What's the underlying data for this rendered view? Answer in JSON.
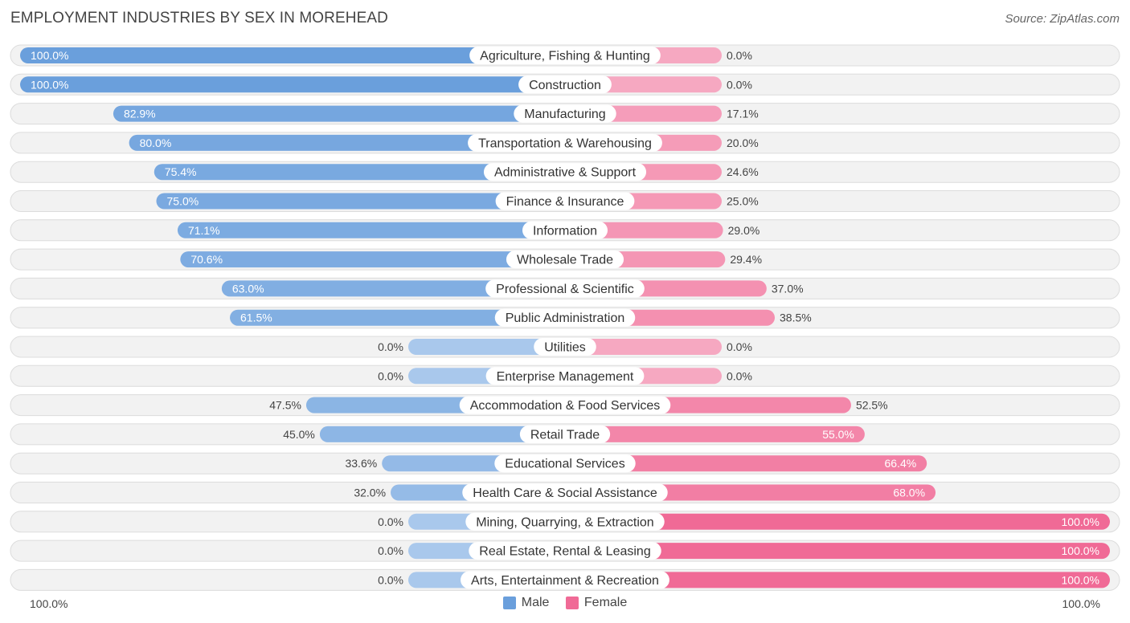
{
  "title": "EMPLOYMENT INDUSTRIES BY SEX IN MOREHEAD",
  "source": "Source: ZipAtlas.com",
  "colors": {
    "male_strong": "#6a9fdc",
    "male_light": "#a9c8ec",
    "female_strong": "#f06a96",
    "female_light": "#f6a8c1"
  },
  "legend": {
    "male": "Male",
    "female": "Female"
  },
  "axis": {
    "left_label": "100.0%",
    "right_label": "100.0%"
  },
  "chart_data": {
    "type": "bar",
    "orientation": "horizontal-diverging",
    "title": "EMPLOYMENT INDUSTRIES BY SEX IN MOREHEAD",
    "xlim": [
      -100,
      100
    ],
    "categories": [
      "Agriculture, Fishing & Hunting",
      "Construction",
      "Manufacturing",
      "Transportation & Warehousing",
      "Administrative & Support",
      "Finance & Insurance",
      "Information",
      "Wholesale Trade",
      "Professional & Scientific",
      "Public Administration",
      "Utilities",
      "Enterprise Management",
      "Accommodation & Food Services",
      "Retail Trade",
      "Educational Services",
      "Health Care & Social Assistance",
      "Mining, Quarrying, & Extraction",
      "Real Estate, Rental & Leasing",
      "Arts, Entertainment & Recreation"
    ],
    "series": [
      {
        "name": "Male",
        "values": [
          100.0,
          100.0,
          82.9,
          80.0,
          75.4,
          75.0,
          71.1,
          70.6,
          63.0,
          61.5,
          0.0,
          0.0,
          47.5,
          45.0,
          33.6,
          32.0,
          0.0,
          0.0,
          0.0
        ]
      },
      {
        "name": "Female",
        "values": [
          0.0,
          0.0,
          17.1,
          20.0,
          24.6,
          25.0,
          29.0,
          29.4,
          37.0,
          38.5,
          0.0,
          0.0,
          52.5,
          55.0,
          66.4,
          68.0,
          100.0,
          100.0,
          100.0
        ]
      }
    ],
    "value_labels": {
      "male": [
        "100.0%",
        "100.0%",
        "82.9%",
        "80.0%",
        "75.4%",
        "75.0%",
        "71.1%",
        "70.6%",
        "63.0%",
        "61.5%",
        "0.0%",
        "0.0%",
        "47.5%",
        "45.0%",
        "33.6%",
        "32.0%",
        "0.0%",
        "0.0%",
        "0.0%"
      ],
      "female": [
        "0.0%",
        "0.0%",
        "17.1%",
        "20.0%",
        "24.6%",
        "25.0%",
        "29.0%",
        "29.4%",
        "37.0%",
        "38.5%",
        "0.0%",
        "0.0%",
        "52.5%",
        "55.0%",
        "66.4%",
        "68.0%",
        "100.0%",
        "100.0%",
        "100.0%"
      ]
    }
  }
}
